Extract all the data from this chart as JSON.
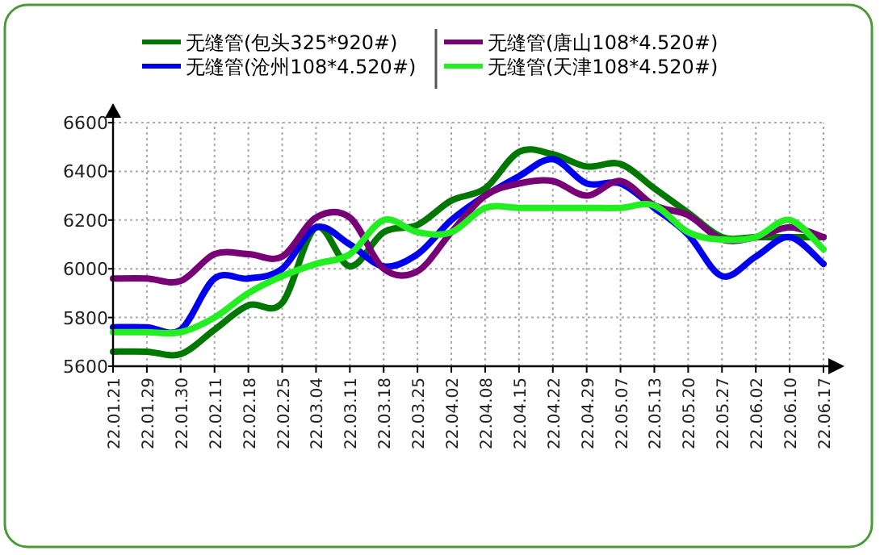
{
  "chart_data": {
    "type": "line",
    "categories": [
      "22.01.21",
      "22.01.29",
      "22.01.30",
      "22.02.11",
      "22.02.18",
      "22.02.25",
      "22.03.04",
      "22.03.11",
      "22.03.18",
      "22.03.25",
      "22.04.02",
      "22.04.08",
      "22.04.15",
      "22.04.22",
      "22.04.29",
      "22.05.07",
      "22.05.13",
      "22.05.20",
      "22.05.27",
      "22.06.02",
      "22.06.10",
      "22.06.17"
    ],
    "series": [
      {
        "name": "无缝管(包头325*920#)",
        "color": "#007700",
        "values": [
          5660,
          5660,
          5650,
          5750,
          5850,
          5860,
          6170,
          6010,
          6150,
          6180,
          6280,
          6330,
          6480,
          6470,
          6420,
          6430,
          6330,
          6230,
          6130,
          6130,
          6130,
          6130
        ]
      },
      {
        "name": "无缝管(沧州108*4.520#)",
        "color": "#0000ee",
        "values": [
          5760,
          5760,
          5750,
          5960,
          5960,
          6000,
          6170,
          6100,
          6010,
          6060,
          6200,
          6300,
          6380,
          6450,
          6350,
          6350,
          6250,
          6140,
          5970,
          6050,
          6130,
          6020
        ]
      },
      {
        "name": "无缝管(唐山108*4.520#)",
        "color": "#770077",
        "values": [
          5960,
          5960,
          5950,
          6060,
          6060,
          6050,
          6210,
          6210,
          6000,
          5990,
          6150,
          6300,
          6350,
          6360,
          6300,
          6360,
          6260,
          6220,
          6120,
          6130,
          6170,
          6130
        ]
      },
      {
        "name": "无缝管(天津108*4.520#)",
        "color": "#22ee22",
        "values": [
          5740,
          5740,
          5740,
          5800,
          5900,
          5970,
          6020,
          6060,
          6200,
          6150,
          6150,
          6250,
          6250,
          6250,
          6250,
          6250,
          6260,
          6150,
          6120,
          6130,
          6200,
          6080
        ]
      }
    ],
    "ylim": [
      5600,
      6600
    ],
    "yticks": [
      5600,
      5800,
      6000,
      6200,
      6400,
      6600
    ],
    "grid": true,
    "legend": "top",
    "line_style": "solid",
    "marker": "none"
  }
}
